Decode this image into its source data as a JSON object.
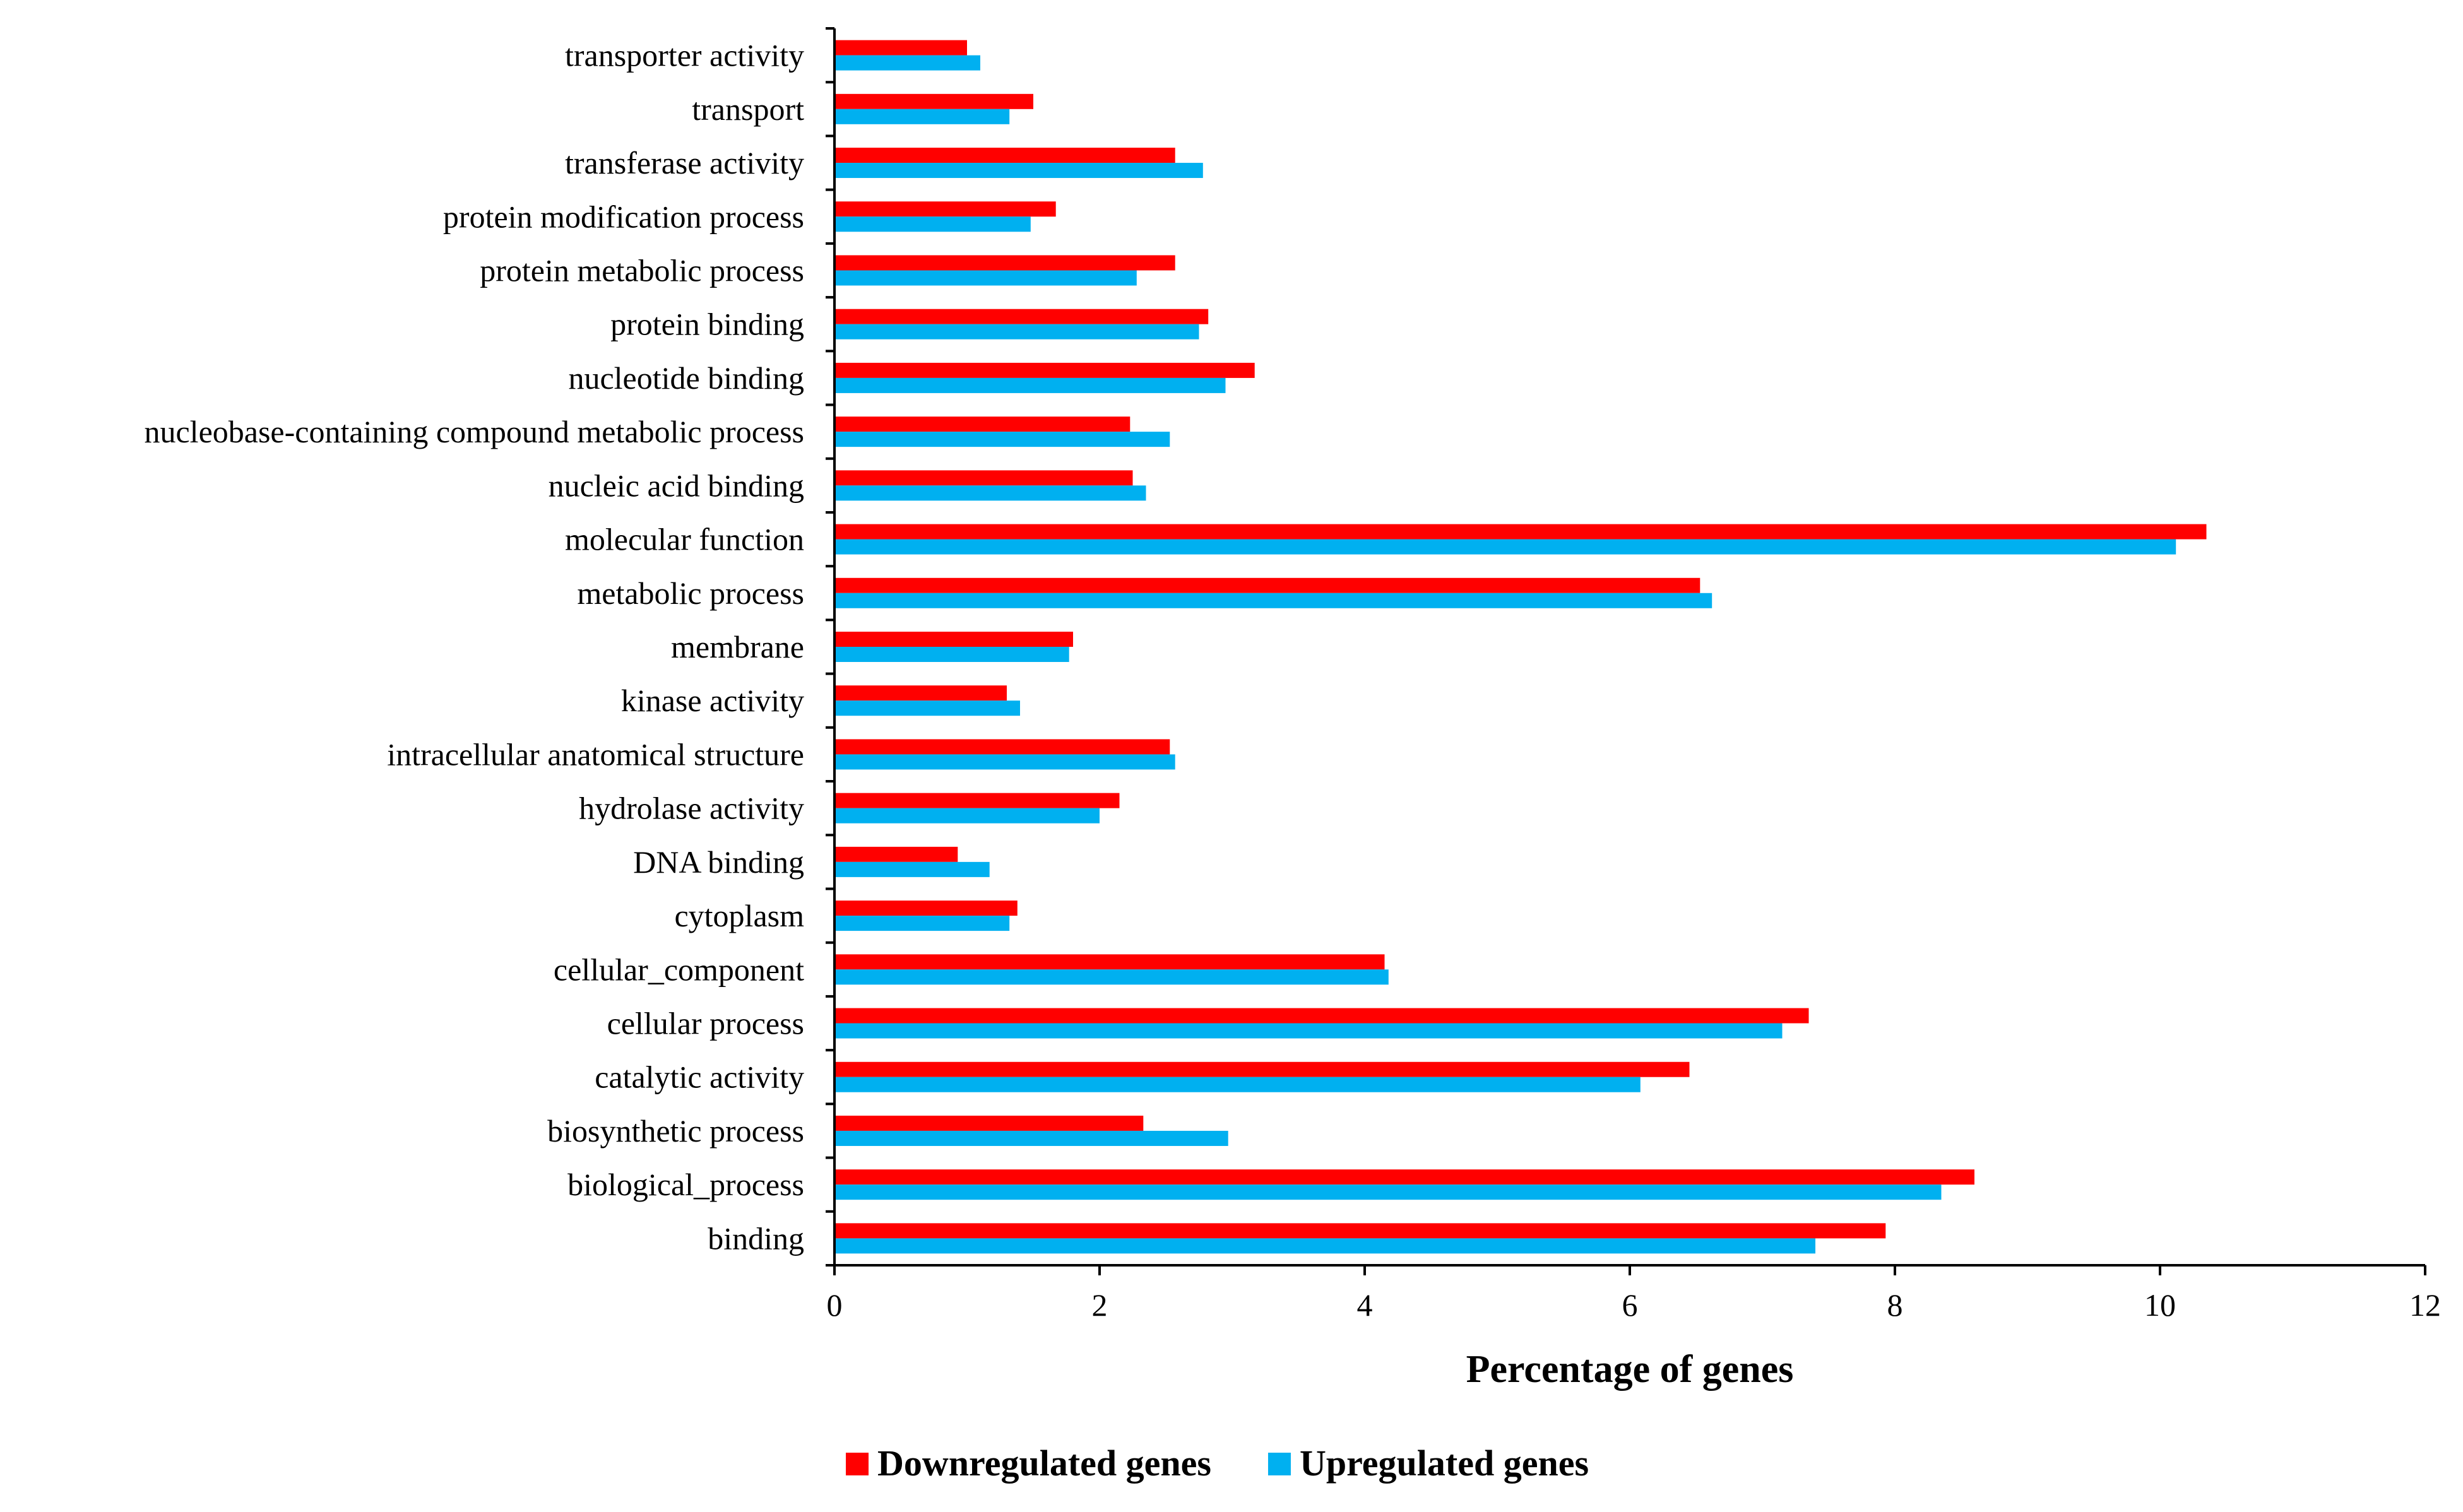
{
  "chart_data": {
    "type": "bar",
    "orientation": "horizontal",
    "title": "",
    "xlabel": "Percentage of genes",
    "ylabel": "",
    "xlim": [
      0,
      12
    ],
    "xticks": [
      0,
      2,
      4,
      6,
      8,
      10,
      12
    ],
    "grid": false,
    "legend_position": "bottom-center",
    "categories": [
      "transporter activity",
      "transport",
      "transferase activity",
      "protein modification process",
      "protein metabolic process",
      "protein binding",
      "nucleotide binding",
      "nucleobase-containing compound metabolic process",
      "nucleic acid binding",
      "molecular function",
      "metabolic process",
      "membrane",
      "kinase activity",
      "intracellular anatomical structure",
      "hydrolase activity",
      "DNA binding",
      "cytoplasm",
      "cellular_component",
      "cellular process",
      "catalytic activity",
      "biosynthetic process",
      "biological_process",
      "binding"
    ],
    "series": [
      {
        "name": "Downregulated genes",
        "color": "#ff0000",
        "values": [
          1.0,
          1.5,
          2.57,
          1.67,
          2.57,
          2.82,
          3.17,
          2.23,
          2.25,
          10.35,
          6.53,
          1.8,
          1.3,
          2.53,
          2.15,
          0.93,
          1.38,
          4.15,
          7.35,
          6.45,
          2.33,
          8.6,
          7.93
        ]
      },
      {
        "name": "Upregulated genes",
        "color": "#00b0f0",
        "values": [
          1.1,
          1.32,
          2.78,
          1.48,
          2.28,
          2.75,
          2.95,
          2.53,
          2.35,
          10.12,
          6.62,
          1.77,
          1.4,
          2.57,
          2.0,
          1.17,
          1.32,
          4.18,
          7.15,
          6.08,
          2.97,
          8.35,
          7.4
        ]
      }
    ]
  }
}
